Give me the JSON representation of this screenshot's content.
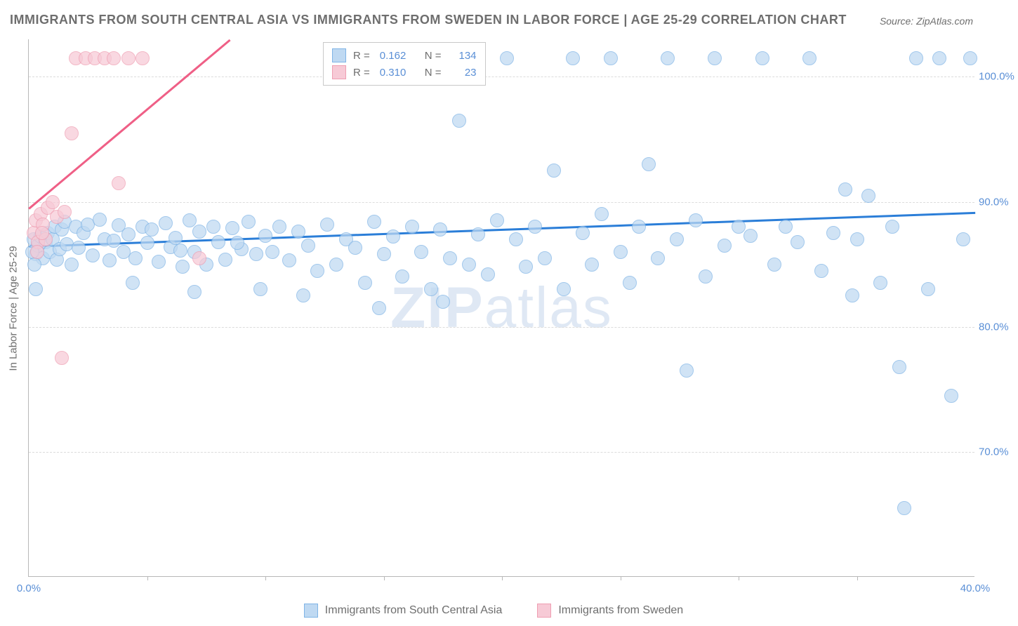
{
  "title": "IMMIGRANTS FROM SOUTH CENTRAL ASIA VS IMMIGRANTS FROM SWEDEN IN LABOR FORCE | AGE 25-29 CORRELATION CHART",
  "source": "Source: ZipAtlas.com",
  "ylabel": "In Labor Force | Age 25-29",
  "watermark": "ZIPatlas",
  "type": "scatter",
  "background_color": "#ffffff",
  "grid_color": "#dcdcdc",
  "axis_color": "#b8b8b8",
  "xlim": [
    0,
    40
  ],
  "ylim": [
    60,
    103
  ],
  "y_ticks": [
    70,
    80,
    90,
    100
  ],
  "y_tick_labels": [
    "70.0%",
    "80.0%",
    "90.0%",
    "100.0%"
  ],
  "x_tick_marks": [
    5,
    10,
    15,
    20,
    25,
    30,
    35
  ],
  "x_tick_labels": [
    {
      "pos": 0,
      "label": "0.0%"
    },
    {
      "pos": 40,
      "label": "40.0%"
    }
  ],
  "series": [
    {
      "name": "Immigrants from South Central Asia",
      "marker_fill": "#bfd9f2",
      "marker_stroke": "#7fb4e6",
      "marker_opacity": 0.72,
      "marker_radius": 10,
      "line_color": "#2b7ed8",
      "line_width": 2.5,
      "regression": {
        "x1": 0,
        "y1": 86.5,
        "x2": 40,
        "y2": 89.2
      },
      "R": "0.162",
      "N": "134",
      "points": [
        [
          0.2,
          87
        ],
        [
          0.3,
          85.8
        ],
        [
          0.4,
          86.5
        ],
        [
          0.5,
          87.2
        ],
        [
          0.6,
          85.5
        ],
        [
          0.7,
          86.8
        ],
        [
          0.8,
          87.5
        ],
        [
          0.9,
          86.0
        ],
        [
          1.0,
          87.0
        ],
        [
          1.1,
          88.0
        ],
        [
          1.2,
          85.4
        ],
        [
          1.3,
          86.2
        ],
        [
          1.4,
          87.8
        ],
        [
          1.5,
          88.4
        ],
        [
          1.6,
          86.6
        ],
        [
          1.8,
          85.0
        ],
        [
          2.0,
          88.0
        ],
        [
          2.1,
          86.3
        ],
        [
          2.3,
          87.5
        ],
        [
          2.5,
          88.2
        ],
        [
          2.7,
          85.7
        ],
        [
          3.0,
          88.6
        ],
        [
          3.2,
          87.0
        ],
        [
          3.4,
          85.3
        ],
        [
          3.6,
          86.9
        ],
        [
          3.8,
          88.1
        ],
        [
          4.0,
          86.0
        ],
        [
          4.2,
          87.4
        ],
        [
          4.5,
          85.5
        ],
        [
          4.8,
          88.0
        ],
        [
          5.0,
          86.7
        ],
        [
          5.2,
          87.8
        ],
        [
          5.5,
          85.2
        ],
        [
          5.8,
          88.3
        ],
        [
          6.0,
          86.4
        ],
        [
          6.2,
          87.1
        ],
        [
          6.5,
          84.8
        ],
        [
          6.8,
          88.5
        ],
        [
          7.0,
          86.0
        ],
        [
          7.2,
          87.6
        ],
        [
          7.5,
          85.0
        ],
        [
          7.8,
          88.0
        ],
        [
          8.0,
          86.8
        ],
        [
          8.3,
          85.4
        ],
        [
          8.6,
          87.9
        ],
        [
          9.0,
          86.2
        ],
        [
          9.3,
          88.4
        ],
        [
          9.6,
          85.8
        ],
        [
          10.0,
          87.3
        ],
        [
          10.3,
          86.0
        ],
        [
          10.6,
          88.0
        ],
        [
          11.0,
          85.3
        ],
        [
          11.4,
          87.6
        ],
        [
          11.8,
          86.5
        ],
        [
          12.2,
          84.5
        ],
        [
          12.6,
          88.2
        ],
        [
          13.0,
          85.0
        ],
        [
          13.4,
          87.0
        ],
        [
          13.8,
          86.3
        ],
        [
          14.2,
          83.5
        ],
        [
          14.6,
          88.4
        ],
        [
          15.0,
          85.8
        ],
        [
          15.4,
          87.2
        ],
        [
          15.8,
          84.0
        ],
        [
          16.2,
          88.0
        ],
        [
          16.6,
          86.0
        ],
        [
          17.0,
          83.0
        ],
        [
          17.4,
          87.8
        ],
        [
          17.8,
          85.5
        ],
        [
          18.2,
          96.5
        ],
        [
          18.6,
          85.0
        ],
        [
          19.0,
          87.4
        ],
        [
          19.4,
          84.2
        ],
        [
          19.8,
          88.5
        ],
        [
          20.2,
          101.5
        ],
        [
          20.6,
          87.0
        ],
        [
          21.0,
          84.8
        ],
        [
          21.4,
          88.0
        ],
        [
          21.8,
          85.5
        ],
        [
          22.2,
          92.5
        ],
        [
          22.6,
          83.0
        ],
        [
          23.0,
          101.5
        ],
        [
          23.4,
          87.5
        ],
        [
          23.8,
          85.0
        ],
        [
          24.2,
          89.0
        ],
        [
          24.6,
          101.5
        ],
        [
          25.0,
          86.0
        ],
        [
          25.4,
          83.5
        ],
        [
          25.8,
          88.0
        ],
        [
          26.2,
          93.0
        ],
        [
          26.6,
          85.5
        ],
        [
          27.0,
          101.5
        ],
        [
          27.4,
          87.0
        ],
        [
          27.8,
          76.5
        ],
        [
          28.2,
          88.5
        ],
        [
          28.6,
          84.0
        ],
        [
          29.0,
          101.5
        ],
        [
          29.4,
          86.5
        ],
        [
          30.0,
          88.0
        ],
        [
          30.5,
          87.3
        ],
        [
          31.0,
          101.5
        ],
        [
          31.5,
          85.0
        ],
        [
          32.0,
          88.0
        ],
        [
          32.5,
          86.8
        ],
        [
          33.0,
          101.5
        ],
        [
          33.5,
          84.5
        ],
        [
          34.0,
          87.5
        ],
        [
          34.5,
          91.0
        ],
        [
          35.0,
          87.0
        ],
        [
          35.5,
          90.5
        ],
        [
          36.0,
          83.5
        ],
        [
          36.5,
          88.0
        ],
        [
          36.8,
          76.8
        ],
        [
          37.0,
          65.5
        ],
        [
          37.5,
          101.5
        ],
        [
          38.0,
          83.0
        ],
        [
          38.5,
          101.5
        ],
        [
          39.0,
          74.5
        ],
        [
          39.5,
          87.0
        ],
        [
          39.8,
          101.5
        ],
        [
          34.8,
          82.5
        ],
        [
          14.8,
          81.5
        ],
        [
          17.5,
          82.0
        ],
        [
          11.6,
          82.5
        ],
        [
          9.8,
          83.0
        ],
        [
          7.0,
          82.8
        ],
        [
          4.4,
          83.5
        ],
        [
          0.3,
          83.0
        ],
        [
          0.15,
          86.0
        ],
        [
          0.25,
          85.0
        ],
        [
          6.4,
          86.1
        ],
        [
          8.8,
          86.7
        ]
      ]
    },
    {
      "name": "Immigrants from Sweden",
      "marker_fill": "#f7cad6",
      "marker_stroke": "#ef9eb2",
      "marker_opacity": 0.72,
      "marker_radius": 10,
      "line_color": "#ef5f86",
      "line_width": 2.5,
      "regression": {
        "x1": 0,
        "y1": 89.5,
        "x2": 8.5,
        "y2": 103
      },
      "R": "0.310",
      "N": "23",
      "points": [
        [
          0.2,
          87.5
        ],
        [
          0.3,
          88.5
        ],
        [
          0.4,
          86.8
        ],
        [
          0.5,
          89.0
        ],
        [
          0.6,
          88.2
        ],
        [
          0.7,
          87.0
        ],
        [
          0.8,
          89.5
        ],
        [
          1.0,
          90.0
        ],
        [
          1.2,
          88.8
        ],
        [
          1.5,
          89.2
        ],
        [
          1.8,
          95.5
        ],
        [
          2.0,
          101.5
        ],
        [
          2.4,
          101.5
        ],
        [
          2.8,
          101.5
        ],
        [
          3.2,
          101.5
        ],
        [
          3.6,
          101.5
        ],
        [
          4.2,
          101.5
        ],
        [
          4.8,
          101.5
        ],
        [
          1.4,
          77.5
        ],
        [
          3.8,
          91.5
        ],
        [
          0.35,
          86.0
        ],
        [
          0.55,
          87.5
        ],
        [
          7.2,
          85.5
        ]
      ]
    }
  ],
  "correlation_legend": {
    "rows": [
      {
        "swatch_fill": "#bfd9f2",
        "swatch_stroke": "#7fb4e6",
        "R": "0.162",
        "N": "134"
      },
      {
        "swatch_fill": "#f7cad6",
        "swatch_stroke": "#ef9eb2",
        "R": "0.310",
        "N": "  23"
      }
    ],
    "r_label": "R  =",
    "n_label": "N  ="
  },
  "bottom_legend": [
    {
      "swatch_fill": "#bfd9f2",
      "swatch_stroke": "#7fb4e6",
      "label": "Immigrants from South Central Asia"
    },
    {
      "swatch_fill": "#f7cad6",
      "swatch_stroke": "#ef9eb2",
      "label": "Immigrants from Sweden"
    }
  ]
}
